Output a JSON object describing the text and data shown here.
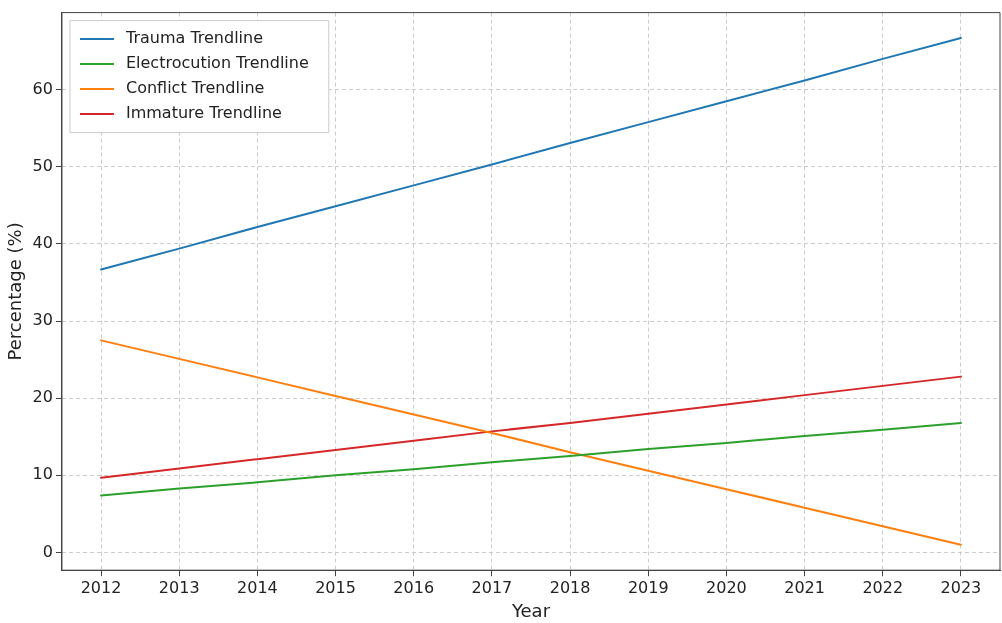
{
  "chart_data": {
    "type": "line",
    "xlabel": "Year",
    "ylabel": "Percentage (%)",
    "categories": [
      "2012",
      "2013",
      "2014",
      "2015",
      "2016",
      "2017",
      "2018",
      "2019",
      "2020",
      "2021",
      "2022",
      "2023"
    ],
    "ylim": [
      -2.3,
      70
    ],
    "yticks": [
      0,
      10,
      20,
      30,
      40,
      50,
      60
    ],
    "grid": true,
    "legend": "top left",
    "marker": "none",
    "line_style": "solid",
    "series": [
      {
        "name": "Trauma Trendline",
        "color": "#1f77b4",
        "values": [
          36.7,
          39.4,
          42.2,
          44.9,
          47.6,
          50.3,
          53.1,
          55.8,
          58.5,
          61.2,
          64.0,
          66.7
        ]
      },
      {
        "name": "Electrocution Trendline",
        "color": "#2ca02c",
        "values": [
          7.4,
          8.3,
          9.1,
          10.0,
          10.8,
          11.7,
          12.5,
          13.4,
          14.2,
          15.1,
          15.9,
          16.8
        ]
      },
      {
        "name": "Conflict Trendline",
        "color": "#ff7f0e",
        "values": [
          27.5,
          25.1,
          22.7,
          20.3,
          17.9,
          15.5,
          13.0,
          10.6,
          8.2,
          5.8,
          3.4,
          1.0
        ]
      },
      {
        "name": "Immature Trendline",
        "color": "#d62728",
        "values": [
          9.7,
          10.9,
          12.1,
          13.3,
          14.5,
          15.7,
          16.8,
          18.0,
          19.2,
          20.4,
          21.6,
          22.8
        ]
      }
    ]
  }
}
